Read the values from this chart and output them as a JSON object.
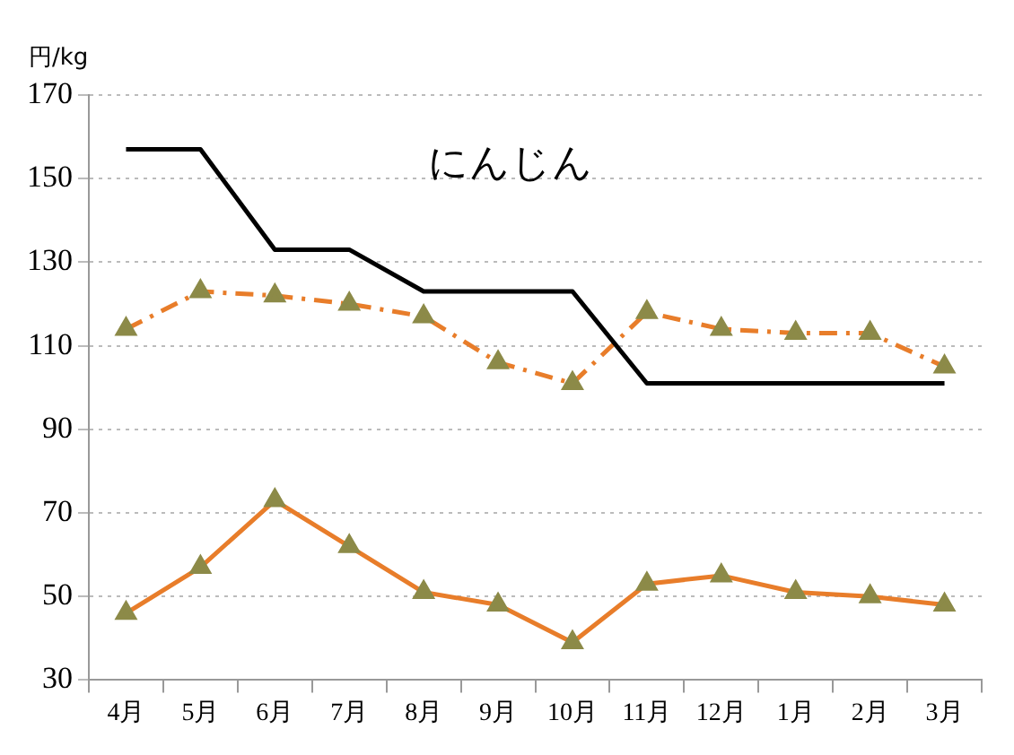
{
  "chart_data": {
    "type": "line",
    "ylabel": "円/kg",
    "annotations": [
      "にんじん"
    ],
    "categories": [
      "4月",
      "5月",
      "6月",
      "7月",
      "8月",
      "9月",
      "10月",
      "11月",
      "12月",
      "1月",
      "2月",
      "3月"
    ],
    "series": [
      {
        "color": "#000000",
        "marker": "none",
        "line_style": "solid",
        "values": [
          157,
          157,
          133,
          133,
          123,
          123,
          123,
          101,
          101,
          101,
          101,
          101
        ]
      },
      {
        "color": "#e87d2a",
        "marker": "triangle",
        "line_style": "dashed",
        "values": [
          114,
          123,
          122,
          120,
          117,
          106,
          101,
          118,
          114,
          113,
          113,
          105
        ]
      },
      {
        "color": "#e87d2a",
        "marker": "triangle",
        "line_style": "solid",
        "values": [
          46,
          57,
          73,
          62,
          51,
          48,
          39,
          53,
          55,
          51,
          50,
          48
        ]
      }
    ],
    "ylim": [
      30,
      170
    ],
    "yticks": [
      30,
      50,
      70,
      90,
      110,
      130,
      150,
      170
    ],
    "grid": "y",
    "legend": false
  }
}
